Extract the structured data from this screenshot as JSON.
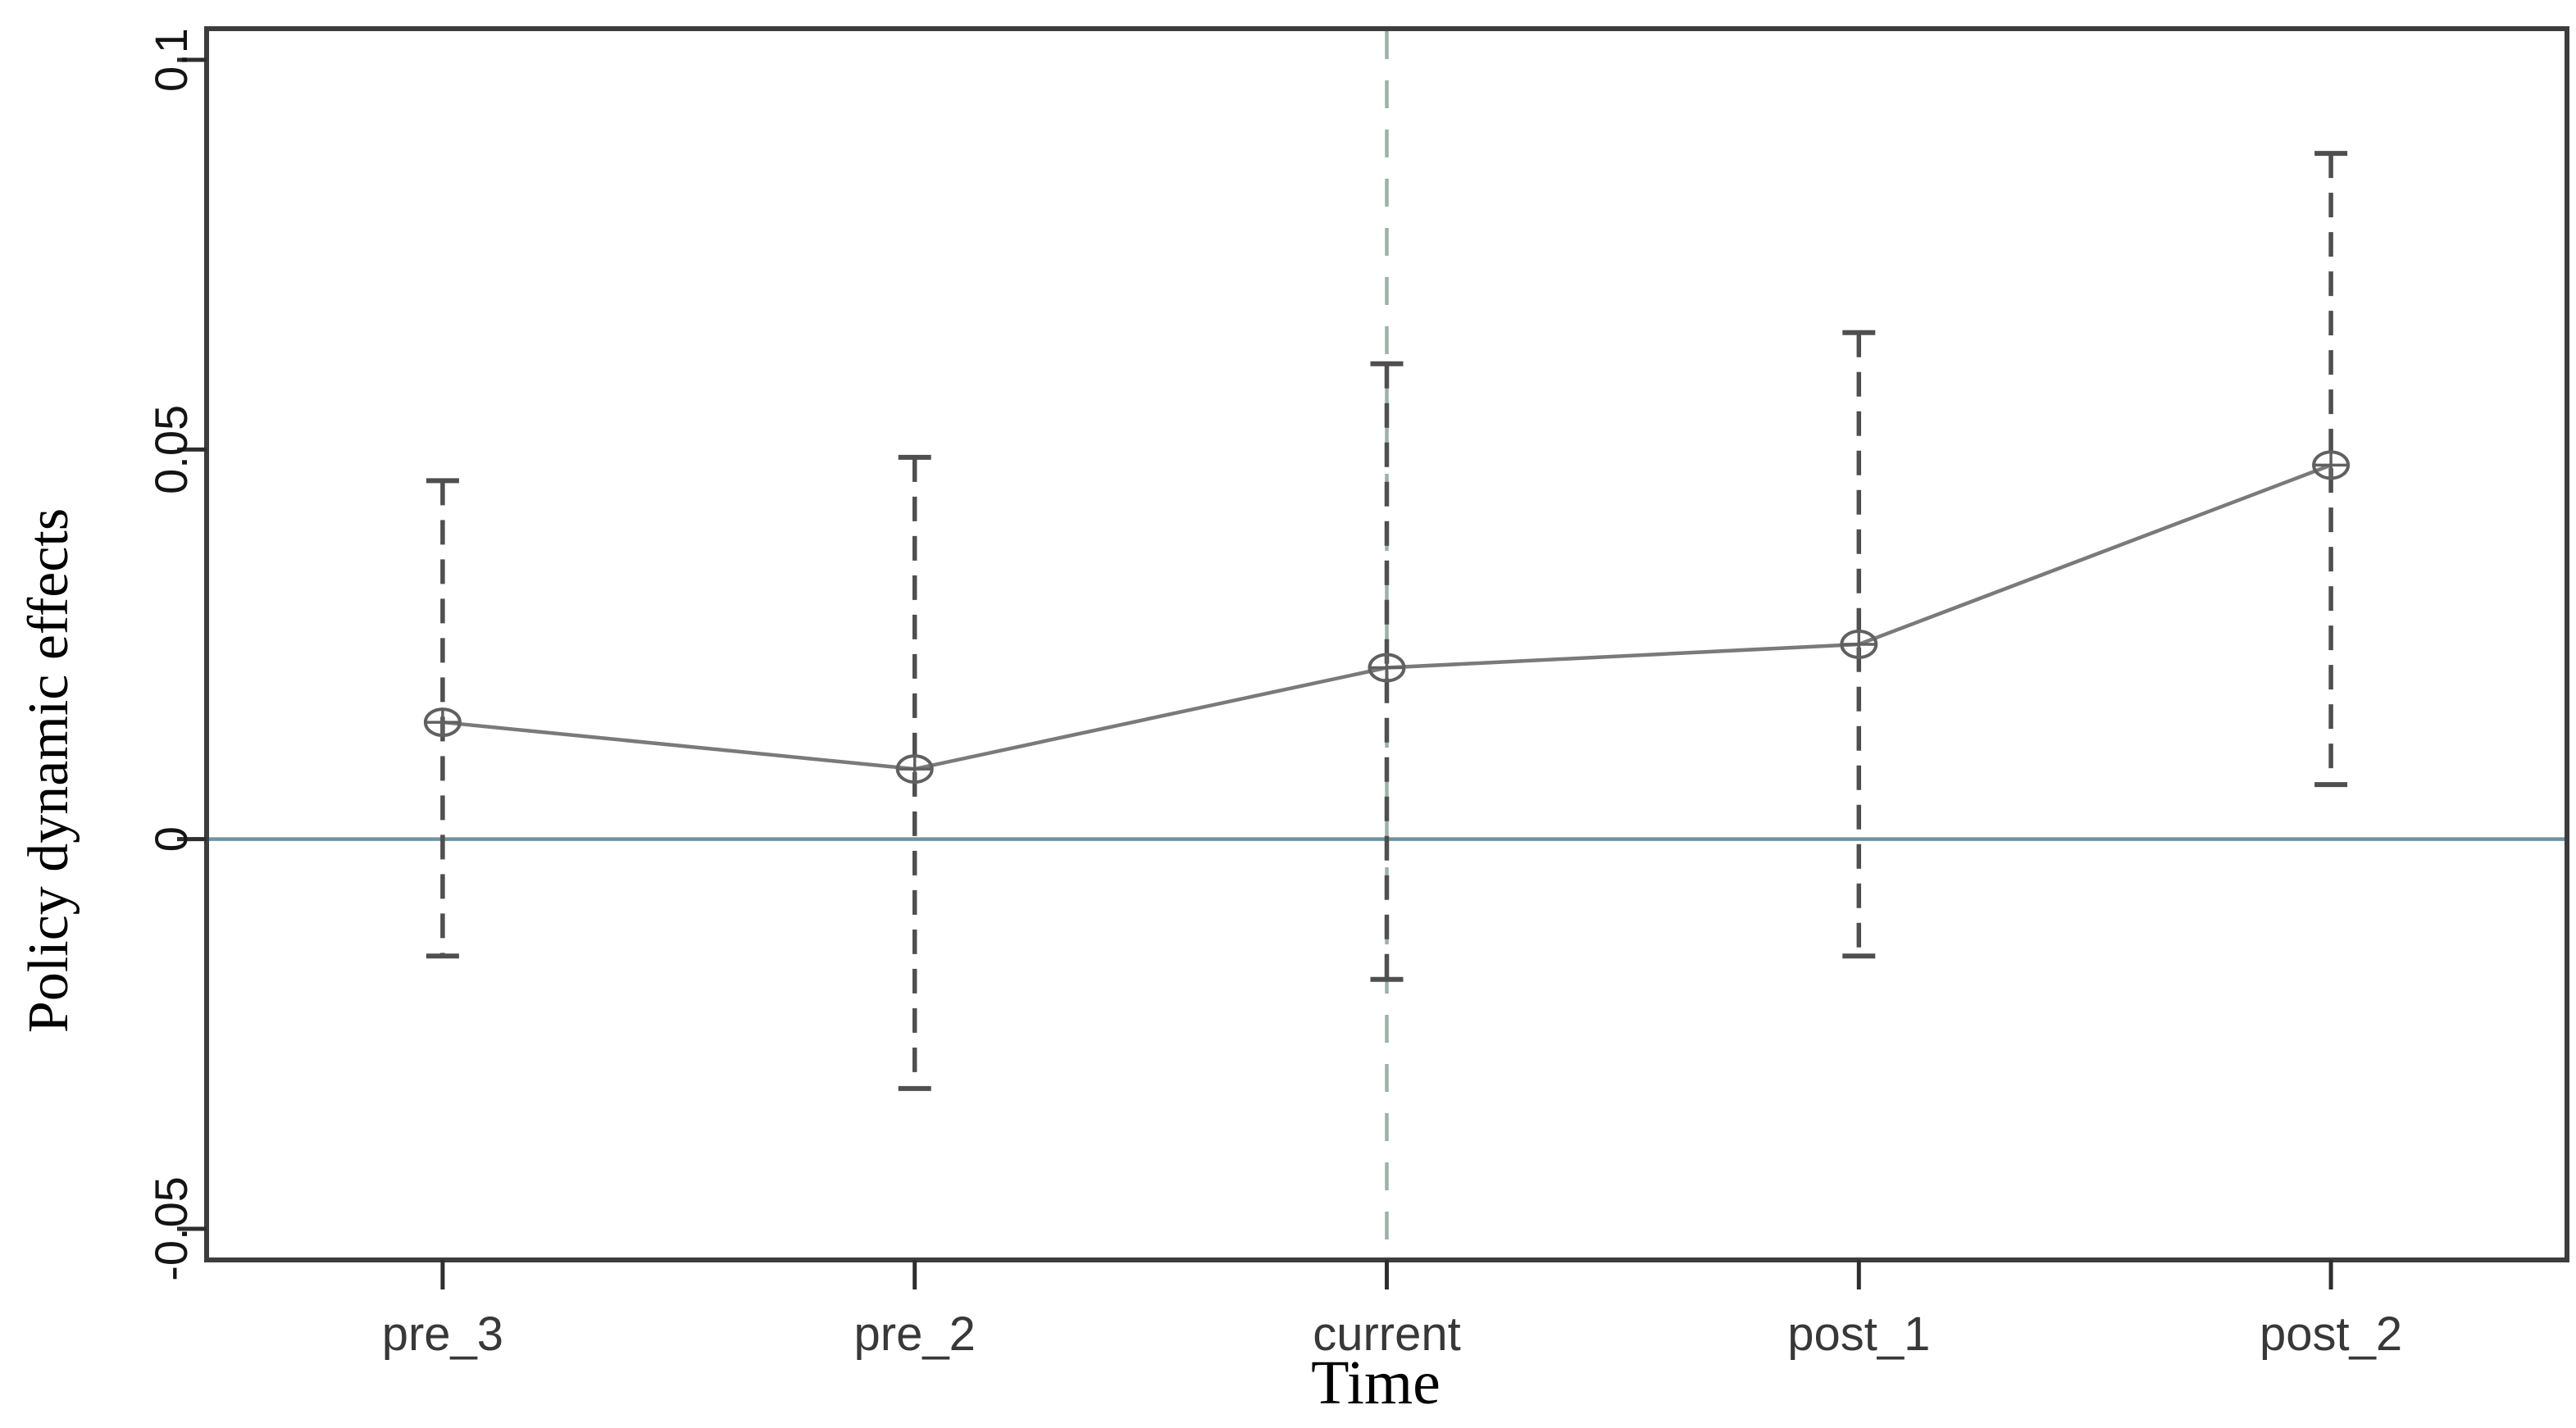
{
  "figure": {
    "xlabel": "Time",
    "ylabel": "Policy dynamic effects"
  },
  "chart_data": {
    "type": "line",
    "title": "",
    "xlabel": "Time",
    "ylabel": "Policy dynamic effects",
    "categories": [
      "pre_3",
      "pre_2",
      "current",
      "post_1",
      "post_2"
    ],
    "x_positions": [
      0.1,
      0.3,
      0.5,
      0.7,
      0.9
    ],
    "series": [
      {
        "name": "Policy dynamic effects",
        "marker": "circle-plus",
        "values": [
          0.015,
          0.009,
          0.022,
          0.025,
          0.048
        ]
      }
    ],
    "error_bars": {
      "style": "dashed",
      "low": [
        -0.015,
        -0.032,
        -0.018,
        -0.015,
        0.007
      ],
      "high": [
        0.046,
        0.049,
        0.061,
        0.065,
        0.088
      ]
    },
    "y_ticks": {
      "values": [
        0.1,
        0.05,
        0,
        -0.05
      ],
      "labels": [
        "0.1",
        "0.05",
        "0",
        "-0.05"
      ]
    },
    "ylim": [
      -0.054,
      0.104
    ],
    "reference_lines": [
      {
        "axis": "y",
        "value": 0,
        "style": "solid",
        "name": "zero-line"
      },
      {
        "axis": "x",
        "category": "current",
        "style": "dashed",
        "name": "event-line"
      }
    ],
    "grid": false,
    "legend": "none"
  },
  "colors": {
    "background": "#ffffff",
    "spine": "#3d3d3d",
    "tick": "#2e2e2e",
    "y_tick_label": "#141414",
    "x_tick_label": "#383838",
    "axis_title": "#000000",
    "series_line": "#7a7a7a",
    "marker": "#606060",
    "ci": "#4f4f4f",
    "zero_line": "#6b94a7",
    "event_line": "#9cb2a6"
  }
}
